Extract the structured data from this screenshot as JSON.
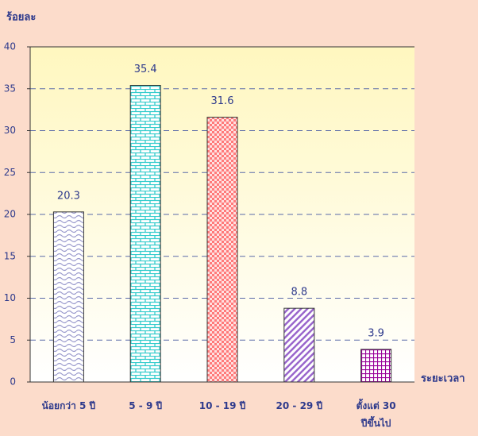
{
  "chart_data": {
    "type": "bar",
    "y_label": "ร้อยละ",
    "x_label": "ระยะเวลา",
    "categories": [
      "น้อยกว่า 5 ปี",
      "5 - 9 ปี",
      "10 - 19 ปี",
      "20 - 29 ปี",
      "ตั้งแต่ 30\nปีขึ้นไป"
    ],
    "values": [
      20.3,
      35.4,
      31.6,
      8.8,
      3.9
    ],
    "colors": [
      "#9999cc",
      "#33cccc",
      "#ff7a7a",
      "#9966cc",
      "#990099"
    ],
    "ylim": [
      0,
      40
    ],
    "yticks": [
      0,
      5,
      10,
      15,
      20,
      25,
      30,
      35,
      40
    ],
    "grid": true
  }
}
